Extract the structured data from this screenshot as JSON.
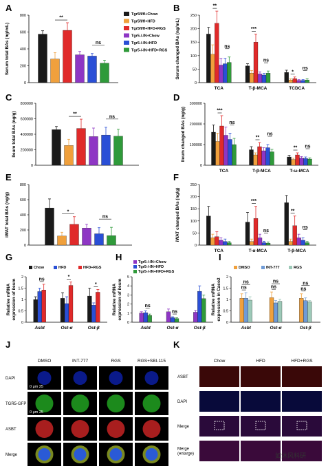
{
  "colors": {
    "chow": "#1a1a1a",
    "hfd": "#f0a03c",
    "hfd_rgs": "#e02a2a",
    "ko_chow": "#8e36c4",
    "ko_hfd": "#2a4fd6",
    "ko_hfd_rgs": "#2f9a3a",
    "dmso": "#f0a03c",
    "int777": "#6f9bd6",
    "rgs": "#9dc9b8"
  },
  "legend_main": {
    "items": [
      {
        "label": "Tgr5fl/fl+Chow",
        "color": "chow"
      },
      {
        "label": "Tgr5fl/fl+HFD",
        "color": "hfd"
      },
      {
        "label": "Tgr5fl/fl+HFD+RGS",
        "color": "hfd_rgs"
      },
      {
        "label": "Tgr5-/-IN+Chow",
        "color": "ko_chow"
      },
      {
        "label": "Tgr5-/-IN+HFD",
        "color": "ko_hfd"
      },
      {
        "label": "Tgr5-/-IN+HFD+RGS",
        "color": "ko_hfd_rgs"
      }
    ]
  },
  "panels": {
    "A": "A",
    "B": "B",
    "C": "C",
    "D": "D",
    "E": "E",
    "F": "F",
    "G": "G",
    "H": "H",
    "I": "I",
    "J": "J",
    "K": "K"
  },
  "chart_data": [
    {
      "id": "A",
      "type": "bar",
      "ylabel": "Serum total BAs (ng/mL)",
      "ylim": [
        0,
        800
      ],
      "yticks": [
        0,
        200,
        400,
        600,
        800
      ],
      "series_colors": [
        "chow",
        "hfd",
        "hfd_rgs",
        "ko_chow",
        "ko_hfd",
        "ko_hfd_rgs"
      ],
      "values": [
        575,
        280,
        620,
        330,
        315,
        230
      ],
      "errors": [
        40,
        75,
        90,
        40,
        30,
        35
      ],
      "annotations": [
        {
          "from": 1,
          "to": 2,
          "text": "**"
        },
        {
          "from": 4,
          "to": 5,
          "text": "ns"
        }
      ]
    },
    {
      "id": "B",
      "type": "bar",
      "ylabel": "Serum changed BAs (ng/mL)",
      "ylim": [
        0,
        250
      ],
      "yticks": [
        0,
        50,
        100,
        150,
        200,
        250
      ],
      "categories": [
        "TCA",
        "T-β-MCA",
        "TCDCA"
      ],
      "series_colors": [
        "chow",
        "hfd",
        "hfd_rgs",
        "ko_chow",
        "ko_hfd",
        "ko_hfd_rgs"
      ],
      "values": [
        [
          180,
          105,
          220,
          65,
          70,
          75
        ],
        [
          62,
          35,
          150,
          32,
          28,
          35
        ],
        [
          38,
          10,
          15,
          8,
          8,
          10
        ]
      ],
      "errors": [
        [
          25,
          35,
          45,
          25,
          20,
          20
        ],
        [
          8,
          10,
          30,
          8,
          6,
          8
        ],
        [
          8,
          4,
          6,
          3,
          3,
          4
        ]
      ],
      "annotations": [
        {
          "group": 0,
          "from": 1,
          "to": 2,
          "text": "**"
        },
        {
          "group": 0,
          "from": 4,
          "to": 5,
          "text": "ns"
        },
        {
          "group": 1,
          "from": 1,
          "to": 2,
          "text": "***"
        },
        {
          "group": 1,
          "from": 4,
          "to": 5,
          "text": "ns"
        },
        {
          "group": 2,
          "from": 1,
          "to": 2,
          "text": "*"
        },
        {
          "group": 2,
          "from": 4,
          "to": 5,
          "text": "ns"
        }
      ]
    },
    {
      "id": "C",
      "type": "bar",
      "ylabel": "Ileum total BAs (ng/g)",
      "ylim": [
        0,
        800000
      ],
      "yticks": [
        0,
        200000,
        400000,
        600000,
        800000
      ],
      "series_colors": [
        "chow",
        "hfd",
        "hfd_rgs",
        "ko_chow",
        "ko_hfd",
        "ko_hfd_rgs"
      ],
      "values": [
        460000,
        255000,
        475000,
        370000,
        390000,
        375000
      ],
      "errors": [
        40000,
        80000,
        120000,
        110000,
        100000,
        90000
      ],
      "annotations": [
        {
          "from": 1,
          "to": 2,
          "text": "**"
        },
        {
          "from": 4,
          "to": 5,
          "text": "ns"
        }
      ]
    },
    {
      "id": "D",
      "type": "bar",
      "ylabel": "Ileum changed BAs (ng/g)",
      "ylim": [
        0,
        300000
      ],
      "yticks": [
        0,
        100000,
        200000,
        300000
      ],
      "categories": [
        "TCA",
        "T-β-MCA",
        "T-ω-MCA"
      ],
      "series_colors": [
        "chow",
        "hfd",
        "hfd_rgs",
        "ko_chow",
        "ko_hfd",
        "ko_hfd_rgs"
      ],
      "values": [
        [
          160000,
          115000,
          190000,
          145000,
          125000,
          100000
        ],
        [
          75000,
          50000,
          90000,
          70000,
          85000,
          65000
        ],
        [
          40000,
          28000,
          50000,
          35000,
          33000,
          30000
        ]
      ],
      "errors": [
        [
          35000,
          40000,
          50000,
          40000,
          30000,
          30000
        ],
        [
          15000,
          10000,
          20000,
          15000,
          15000,
          12000
        ],
        [
          8000,
          6000,
          10000,
          7000,
          7000,
          6000
        ]
      ],
      "annotations": [
        {
          "group": 0,
          "from": 1,
          "to": 2,
          "text": "***"
        },
        {
          "group": 0,
          "from": 4,
          "to": 5,
          "text": "ns"
        },
        {
          "group": 1,
          "from": 1,
          "to": 2,
          "text": "**"
        },
        {
          "group": 1,
          "from": 4,
          "to": 5,
          "text": "ns"
        },
        {
          "group": 2,
          "from": 1,
          "to": 2,
          "text": "**"
        },
        {
          "group": 2,
          "from": 4,
          "to": 5,
          "text": "ns"
        }
      ]
    },
    {
      "id": "E",
      "type": "bar",
      "ylabel": "iWAT total BAs (ng/g)",
      "ylim": [
        0,
        800
      ],
      "yticks": [
        0,
        200,
        400,
        600,
        800
      ],
      "series_colors": [
        "chow",
        "hfd",
        "hfd_rgs",
        "ko_chow",
        "ko_hfd",
        "ko_hfd_rgs"
      ],
      "values": [
        490,
        120,
        275,
        225,
        150,
        125
      ],
      "errors": [
        120,
        50,
        100,
        50,
        80,
        110
      ],
      "annotations": [
        {
          "from": 1,
          "to": 2,
          "text": "*"
        },
        {
          "from": 4,
          "to": 5,
          "text": "ns"
        }
      ]
    },
    {
      "id": "F",
      "type": "bar",
      "ylabel": "iWAT changed BAs (ng/g)",
      "ylim": [
        0,
        250
      ],
      "yticks": [
        0,
        50,
        100,
        150,
        200,
        250
      ],
      "categories": [
        "TCA",
        "T-α-MCA",
        "T-β-MCA"
      ],
      "series_colors": [
        "chow",
        "hfd",
        "hfd_rgs",
        "ko_chow",
        "ko_hfd",
        "ko_hfd_rgs"
      ],
      "values": [
        [
          120,
          30,
          35,
          20,
          15,
          10
        ],
        [
          95,
          15,
          110,
          30,
          10,
          8
        ],
        [
          175,
          15,
          80,
          30,
          20,
          10
        ]
      ],
      "errors": [
        [
          40,
          15,
          20,
          10,
          10,
          5
        ],
        [
          40,
          10,
          50,
          15,
          6,
          5
        ],
        [
          30,
          10,
          40,
          15,
          10,
          5
        ]
      ],
      "annotations": [
        {
          "group": 1,
          "from": 1,
          "to": 2,
          "text": "***"
        },
        {
          "group": 1,
          "from": 4,
          "to": 5,
          "text": "ns"
        },
        {
          "group": 2,
          "from": 1,
          "to": 2,
          "text": "**"
        },
        {
          "group": 2,
          "from": 4,
          "to": 5,
          "text": "ns"
        }
      ]
    },
    {
      "id": "G",
      "type": "bar",
      "ylabel": "Relative mRNA expression of ileum",
      "ylim": [
        0,
        2.0
      ],
      "yticks": [
        0,
        0.5,
        1.0,
        1.5,
        2.0
      ],
      "categories": [
        "Asbt",
        "Ost-α",
        "Ost-β"
      ],
      "legend": [
        "Chow",
        "HFD",
        "HFD+RGS"
      ],
      "series_colors": [
        "chow",
        "ko_hfd",
        "hfd_rgs"
      ],
      "values": [
        [
          1.0,
          1.35,
          1.42
        ],
        [
          1.05,
          0.82,
          1.62
        ],
        [
          1.15,
          0.75,
          1.32
        ]
      ],
      "errors": [
        [
          0.12,
          0.15,
          0.25
        ],
        [
          0.25,
          0.3,
          0.15
        ],
        [
          0.35,
          0.1,
          0.12
        ]
      ],
      "annotations": [
        {
          "group": 0,
          "from": 1,
          "to": 2,
          "text": "ns"
        },
        {
          "group": 1,
          "from": 1,
          "to": 2,
          "text": "*"
        },
        {
          "group": 2,
          "from": 1,
          "to": 2,
          "text": "*"
        }
      ]
    },
    {
      "id": "H",
      "type": "bar",
      "ylabel": "Relative mRNA expression of ileum",
      "ylim": [
        0,
        5
      ],
      "yticks": [
        0,
        1,
        2,
        3,
        4,
        5
      ],
      "categories": [
        "Asbt",
        "Ost-α",
        "Ost-β"
      ],
      "legend": [
        "Tgr5-/-IN+Chow",
        "Tgr5-/-IN+HFD",
        "Tgr5-/-IN+HFD+RGS"
      ],
      "series_colors": [
        "ko_chow",
        "ko_hfd",
        "ko_hfd_rgs"
      ],
      "values": [
        [
          1.0,
          1.05,
          0.75
        ],
        [
          1.15,
          0.5,
          0.4
        ],
        [
          1.1,
          3.4,
          2.6
        ]
      ],
      "errors": [
        [
          0.15,
          0.2,
          0.15
        ],
        [
          0.3,
          0.1,
          0.1
        ],
        [
          0.2,
          0.6,
          0.4
        ]
      ],
      "annotations": [
        {
          "group": 0,
          "from": 1,
          "to": 2,
          "text": "ns"
        },
        {
          "group": 1,
          "from": 1,
          "to": 2,
          "text": "ns"
        }
      ]
    },
    {
      "id": "I",
      "type": "bar",
      "ylabel": "Relative mRNA expression in Caco2",
      "ylim": [
        0,
        2.0
      ],
      "yticks": [
        0.0,
        0.5,
        1.0,
        1.5,
        2.0
      ],
      "categories": [
        "Asbt",
        "Ost-α",
        "Ost-β"
      ],
      "legend": [
        "DMSO",
        "INT-777",
        "RGS"
      ],
      "series_colors": [
        "dmso",
        "int777",
        "rgs"
      ],
      "values": [
        [
          1.05,
          1.05,
          0.97
        ],
        [
          1.08,
          0.85,
          0.92
        ],
        [
          1.05,
          0.95,
          0.9
        ]
      ],
      "errors": [
        [
          0.2,
          0.25,
          0.15
        ],
        [
          0.25,
          0.1,
          0.1
        ],
        [
          0.2,
          0.12,
          0.05
        ]
      ],
      "annotations": [
        {
          "group": 0,
          "from": 0,
          "to": 1,
          "text": "ns"
        },
        {
          "group": 0,
          "from": 0,
          "to": 2,
          "text": "ns"
        },
        {
          "group": 1,
          "from": 0,
          "to": 1,
          "text": "ns"
        },
        {
          "group": 1,
          "from": 0,
          "to": 2,
          "text": "ns"
        },
        {
          "group": 2,
          "from": 0,
          "to": 1,
          "text": "ns"
        },
        {
          "group": 2,
          "from": 0,
          "to": 2,
          "text": "ns"
        }
      ]
    }
  ],
  "micrographs_J": {
    "columns": [
      "DMSO",
      "INT-777",
      "RGS",
      "RGS+SBI-115"
    ],
    "rows": [
      "DAPI",
      "TGR5-GFP",
      "ASBT",
      "Merge"
    ],
    "scale_text": "0 μm 25"
  },
  "micrographs_K": {
    "columns": [
      "Chow",
      "HFD",
      "HFD+RGS"
    ],
    "rows": [
      "ASBT",
      "DAPI",
      "Merge",
      "Merge (enlarge)"
    ]
  },
  "watermark": "如沐风科研"
}
